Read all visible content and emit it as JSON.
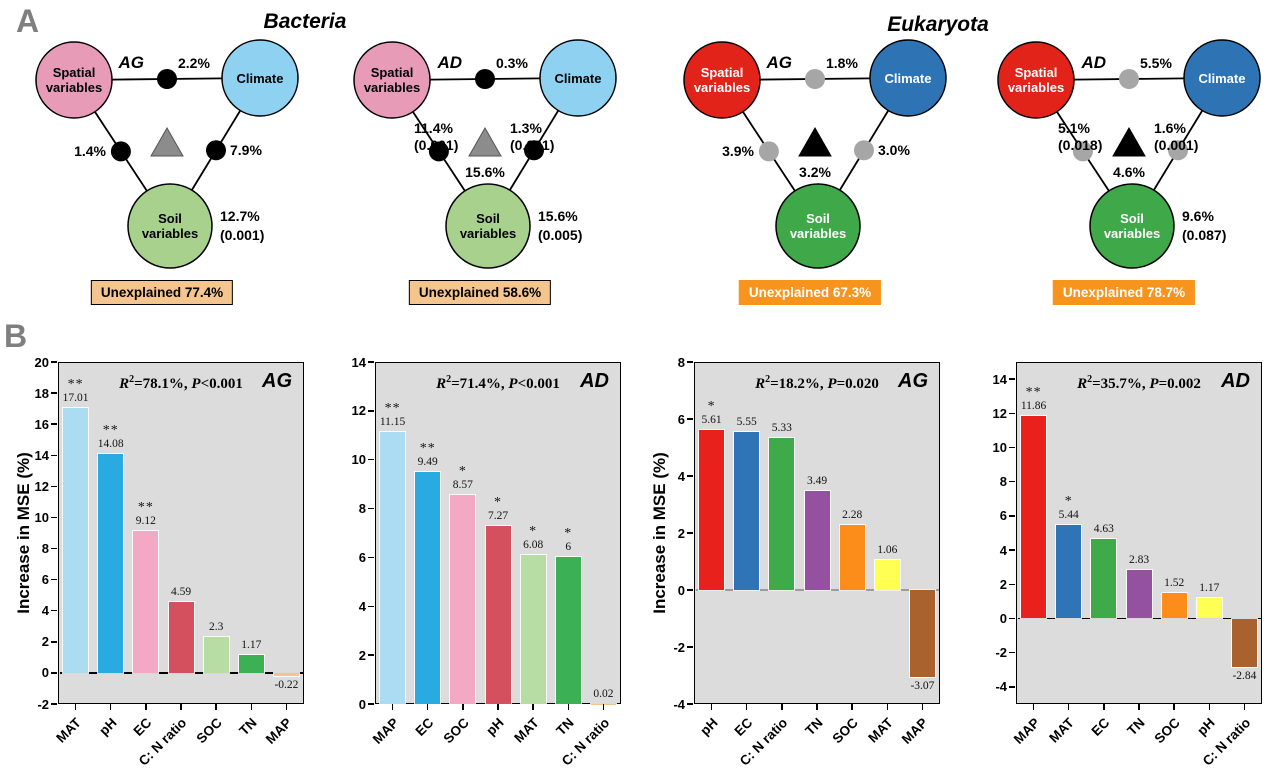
{
  "panel_a": {
    "label": "A",
    "circle_labels": {
      "spatial": [
        "Spatial",
        "variables"
      ],
      "climate": [
        "Climate"
      ],
      "soil": [
        "Soil",
        "variables"
      ]
    },
    "groups": [
      {
        "title": "Bacteria",
        "style": {
          "spatial_color": "#E79BB6",
          "climate_color": "#8FD1F0",
          "soil_color": "#A9D18E",
          "circle_text": "#000000",
          "dot_color": "#000000",
          "triangle_color": "#8C8C8C",
          "triangle_stroke": "#555555",
          "unexplained_bg": "#F4C58F",
          "unexplained_text": "#000000",
          "unexplained_border": "#000000"
        },
        "diagrams": [
          {
            "site": "AG",
            "top_pct": "2.2%",
            "left_pct": "1.4%",
            "right_pct": "7.9%",
            "spatial_lines": [],
            "climate_lines": [],
            "triangle_pct": "",
            "soil_lines": [
              "12.7%",
              "(0.001)"
            ],
            "unexplained": "Unexplained 77.4%"
          },
          {
            "site": "AD",
            "top_pct": "0.3%",
            "left_pct": "",
            "right_pct": "",
            "spatial_lines": [
              "11.4%",
              "(0.001)"
            ],
            "climate_lines": [
              "1.3%",
              "(0.001)"
            ],
            "triangle_pct": "15.6%",
            "soil_lines": [
              "15.6%",
              "(0.005)"
            ],
            "unexplained": "Unexplained 58.6%"
          }
        ]
      },
      {
        "title": "Eukaryota",
        "style": {
          "spatial_color": "#E2231A",
          "climate_color": "#2E74B5",
          "soil_color": "#3FA94A",
          "circle_text": "#FFFFFF",
          "dot_color": "#A6A6A6",
          "triangle_color": "#000000",
          "triangle_stroke": "#000000",
          "unexplained_bg": "#F7941D",
          "unexplained_text": "#FFFFFF",
          "unexplained_border": "#F7941D"
        },
        "diagrams": [
          {
            "site": "AG",
            "top_pct": "1.8%",
            "left_pct": "3.9%",
            "right_pct": "3.0%",
            "spatial_lines": [],
            "climate_lines": [],
            "triangle_pct": "3.2%",
            "soil_lines": [],
            "unexplained": "Unexplained 67.3%"
          },
          {
            "site": "AD",
            "top_pct": "5.5%",
            "left_pct": "",
            "right_pct": "",
            "spatial_lines": [
              "5.1%",
              "(0.018)"
            ],
            "climate_lines": [
              "1.6%",
              "(0.001)"
            ],
            "triangle_pct": "4.6%",
            "soil_lines": [
              "9.6%",
              "(0.087)"
            ],
            "unexplained": "Unexplained 78.7%"
          }
        ]
      }
    ]
  },
  "panel_b": {
    "label": "B"
  },
  "chart_data": [
    {
      "type": "bar",
      "group": "Bacteria",
      "corner_label": "AG",
      "r2": "78.1%",
      "p": "<0.001",
      "ylabel": "Increase in MSE (%)",
      "box_range": [
        -2,
        20
      ],
      "tick_min": -2,
      "tick_max": 20,
      "tick_step": 2,
      "categories": [
        "MAT",
        "pH",
        "EC",
        "C: N ratio",
        "SOC",
        "TN",
        "MAP"
      ],
      "values": [
        17.01,
        14.08,
        9.12,
        4.59,
        2.3,
        1.17,
        -0.22
      ],
      "value_labels": [
        "17.01",
        "14.08",
        "9.12",
        "4.59",
        "2.3",
        "1.17",
        "-0.22"
      ],
      "sig": [
        "**",
        "**",
        "**",
        "",
        "",
        "",
        ""
      ],
      "bar_colors": [
        "#ABDCF2",
        "#29ABE2",
        "#F3A8C3",
        "#D4505E",
        "#B7DCA4",
        "#3BB054",
        "#F3C48D"
      ],
      "zero_line_color": "#000000",
      "grid": false,
      "legend": "none"
    },
    {
      "type": "bar",
      "group": "Bacteria",
      "corner_label": "AD",
      "r2": "71.4%",
      "p": "<0.001",
      "ylabel": "",
      "box_range": [
        0,
        14
      ],
      "tick_min": 0,
      "tick_max": 14,
      "tick_step": 2,
      "categories": [
        "MAP",
        "EC",
        "SOC",
        "pH",
        "MAT",
        "TN",
        "C: N ratio"
      ],
      "values": [
        11.15,
        9.49,
        8.57,
        7.27,
        6.08,
        6,
        0.02
      ],
      "value_labels": [
        "11.15",
        "9.49",
        "8.57",
        "7.27",
        "6.08",
        "6",
        "0.02"
      ],
      "sig": [
        "**",
        "**",
        "*",
        "*",
        "*",
        "*",
        ""
      ],
      "bar_colors": [
        "#ABDCF2",
        "#29ABE2",
        "#F3A8C3",
        "#D4505E",
        "#B7DCA4",
        "#3BB054",
        "#F3C48D"
      ],
      "zero_line_color": "#000000",
      "grid": false,
      "legend": "none"
    },
    {
      "type": "bar",
      "group": "Eukaryota",
      "corner_label": "AG",
      "r2": "18.2%",
      "p": "=0.020",
      "ylabel": "Increase in MSE (%)",
      "box_range": [
        -4,
        8
      ],
      "tick_min": -4,
      "tick_max": 8,
      "tick_step": 2,
      "categories": [
        "pH",
        "EC",
        "C: N ratio",
        "TN",
        "SOC",
        "MAT",
        "MAP"
      ],
      "values": [
        5.61,
        5.55,
        5.33,
        3.49,
        2.28,
        1.06,
        -3.07
      ],
      "value_labels": [
        "5.61",
        "5.55",
        "5.33",
        "3.49",
        "2.28",
        "1.06",
        "-3.07"
      ],
      "sig": [
        "*",
        "",
        "",
        "",
        "",
        "",
        ""
      ],
      "bar_colors": [
        "#E8211D",
        "#2E74B6",
        "#3FAA49",
        "#9351A0",
        "#FC8D1B",
        "#FFFF54",
        "#A9612D"
      ],
      "zero_line_color": "#9C9C9C",
      "grid": false,
      "legend": "none"
    },
    {
      "type": "bar",
      "group": "Eukaryota",
      "corner_label": "AD",
      "r2": "35.7%",
      "p": "=0.002",
      "ylabel": "",
      "box_range": [
        -5,
        15
      ],
      "tick_min": -4,
      "tick_max": 14,
      "tick_step": 2,
      "categories": [
        "MAP",
        "MAT",
        "EC",
        "TN",
        "SOC",
        "pH",
        "C: N ratio"
      ],
      "values": [
        11.86,
        5.44,
        4.63,
        2.83,
        1.52,
        1.17,
        -2.84
      ],
      "value_labels": [
        "11.86",
        "5.44",
        "4.63",
        "2.83",
        "1.52",
        "1.17",
        "-2.84"
      ],
      "sig": [
        "**",
        "*",
        "",
        "",
        "",
        "",
        ""
      ],
      "bar_colors": [
        "#E8211D",
        "#2E74B6",
        "#3FAA49",
        "#9351A0",
        "#FC8D1B",
        "#FFFF54",
        "#A9612D"
      ],
      "zero_line_color": "#000000",
      "grid": false,
      "legend": "none"
    }
  ]
}
